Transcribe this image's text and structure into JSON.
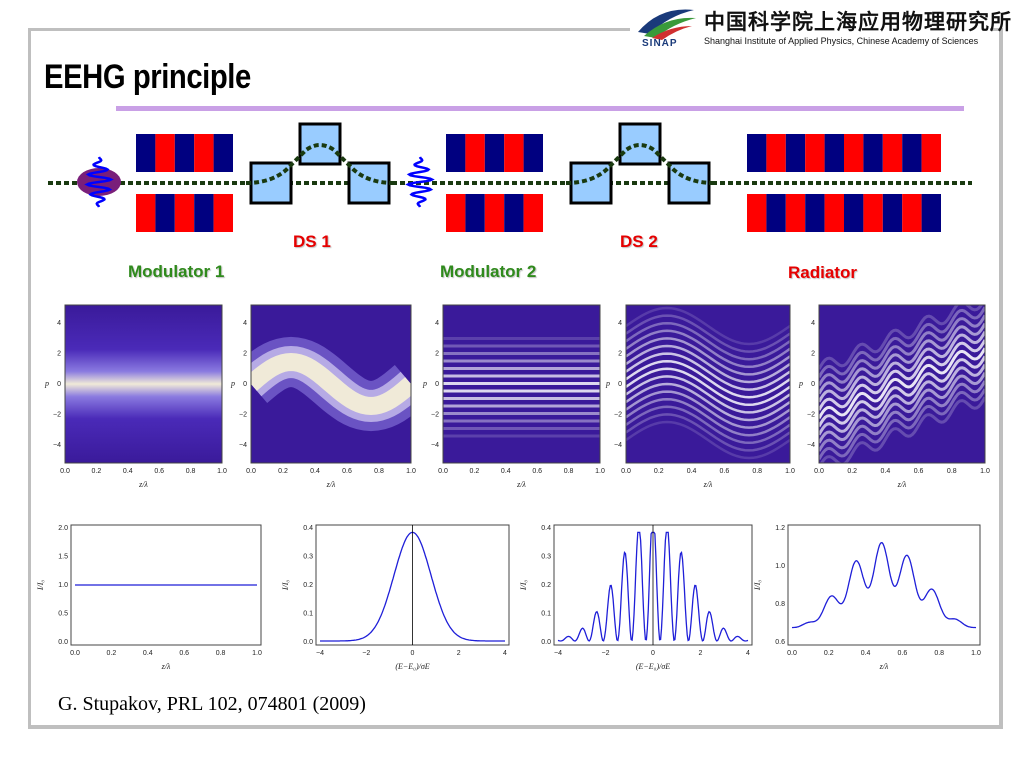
{
  "header": {
    "logo_text": "SINAP",
    "institute_cn": "中国科学院上海应用物理研究所",
    "institute_en": "Shanghai Institute of Applied Physics, Chinese Academy of Sciences"
  },
  "title": "EEHG principle",
  "labels": {
    "ds1": "DS 1",
    "ds2": "DS 2",
    "modulator1": "Modulator 1",
    "modulator2": "Modulator 2",
    "radiator": "Radiator"
  },
  "phase_plots": {
    "y_ticks": [
      "4",
      "2",
      "0",
      "−2",
      "−4"
    ],
    "y_label": "p",
    "x_ticks": [
      "0.0",
      "0.2",
      "0.4",
      "0.6",
      "0.8",
      "1.0"
    ],
    "x_label": "z/λ"
  },
  "current_plots": [
    {
      "y_ticks": [
        "2.0",
        "1.5",
        "1.0",
        "0.5",
        "0.0"
      ],
      "x_ticks": [
        "0.0",
        "0.2",
        "0.4",
        "0.6",
        "0.8",
        "1.0"
      ],
      "x_label": "z/λ",
      "y_label": "I/I₀"
    },
    {
      "y_ticks": [
        "0.4",
        "0.3",
        "0.2",
        "0.1",
        "0.0"
      ],
      "x_ticks": [
        "−4",
        "−2",
        "0",
        "2",
        "4"
      ],
      "x_label": "(E−E₀)/σE",
      "y_label": "I/I₀"
    },
    {
      "y_ticks": [
        "0.4",
        "0.3",
        "0.2",
        "0.1",
        "0.0"
      ],
      "x_ticks": [
        "−4",
        "−2",
        "0",
        "2",
        "4"
      ],
      "x_label": "(E−E₀)/σE",
      "y_label": "I/I₀"
    },
    {
      "y_ticks": [
        "1.2",
        "1.0",
        "0.8",
        "0.6"
      ],
      "x_ticks": [
        "0.0",
        "0.2",
        "0.4",
        "0.6",
        "0.8",
        "1.0"
      ],
      "x_label": "z/λ",
      "y_label": "I/I₀"
    }
  ],
  "citation": "G. Stupakov, PRL 102, 074801 (2009)",
  "colors": {
    "magnet_red": "#ff0000",
    "magnet_blue": "#000080",
    "chicane_fill": "#99ccff",
    "beam_green": "#1a3a10",
    "accent_rule": "#c9a0e6",
    "plot_line": "#1f1fd8"
  }
}
